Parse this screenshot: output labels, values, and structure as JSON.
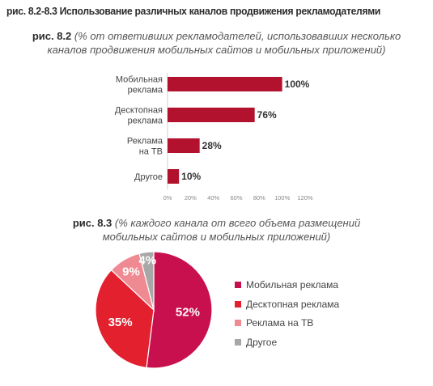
{
  "page": {
    "main_title": "рис. 8.2-8.3 Использование различных каналов продвижения рекламодателями"
  },
  "chart_data": [
    {
      "type": "bar",
      "orientation": "horizontal",
      "caption_label": "рис. 8.2",
      "caption_text": "(% от ответивших рекламодателей, использовавших несколько каналов продвижения мобильных сайтов и мобильных приложений)",
      "caption_line1": "(% от ответивших рекламодателей, использовавших несколько",
      "caption_line2": "каналов продвижения мобильных сайтов и мобильных приложений)",
      "categories": [
        [
          "Мобильная",
          "реклама"
        ],
        [
          "Десктопная",
          "реклама"
        ],
        [
          "Реклама",
          "на ТВ"
        ],
        [
          "Другое"
        ]
      ],
      "values": [
        100,
        76,
        28,
        10
      ],
      "value_labels": [
        "100%",
        "76%",
        "28%",
        "10%"
      ],
      "xlim": [
        0,
        120
      ],
      "ticks": [
        0,
        20,
        40,
        60,
        80,
        100,
        120
      ],
      "tick_labels": [
        "0%",
        "20%",
        "40%",
        "60%",
        "80%",
        "100%",
        "120%"
      ],
      "bar_color": "#b3122e",
      "grid": false
    },
    {
      "type": "pie",
      "caption_label": "рис. 8.3",
      "caption_line1": "(% каждого канала от всего объема размещений",
      "caption_line2": "мобильных сайтов и мобильных приложений)",
      "slices": [
        {
          "name": "Мобильная реклама",
          "value": 52,
          "label": "52%",
          "color": "#c8104f"
        },
        {
          "name": "Десктопная реклама",
          "value": 35,
          "label": "35%",
          "color": "#e3202e"
        },
        {
          "name": "Реклама на ТВ",
          "value": 9,
          "label": "9%",
          "color": "#ef8a92"
        },
        {
          "name": "Другое",
          "value": 4,
          "label": "4%",
          "color": "#a7a7a7"
        }
      ],
      "legend_position": "right"
    }
  ]
}
